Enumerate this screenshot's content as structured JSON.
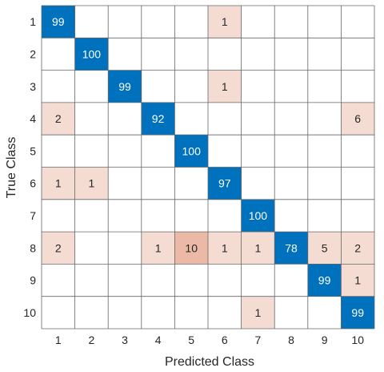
{
  "chart_data": {
    "type": "heatmap",
    "title": "",
    "xlabel": "Predicted Class",
    "ylabel": "True Class",
    "x_categories": [
      "1",
      "2",
      "3",
      "4",
      "5",
      "6",
      "7",
      "8",
      "9",
      "10"
    ],
    "y_categories": [
      "1",
      "2",
      "3",
      "4",
      "5",
      "6",
      "7",
      "8",
      "9",
      "10"
    ],
    "values": [
      [
        99,
        0,
        0,
        0,
        0,
        1,
        0,
        0,
        0,
        0
      ],
      [
        0,
        100,
        0,
        0,
        0,
        0,
        0,
        0,
        0,
        0
      ],
      [
        0,
        0,
        99,
        0,
        0,
        1,
        0,
        0,
        0,
        0
      ],
      [
        2,
        0,
        0,
        92,
        0,
        0,
        0,
        0,
        0,
        6
      ],
      [
        0,
        0,
        0,
        0,
        100,
        0,
        0,
        0,
        0,
        0
      ],
      [
        1,
        1,
        0,
        0,
        0,
        97,
        0,
        0,
        0,
        0
      ],
      [
        0,
        0,
        0,
        0,
        0,
        0,
        100,
        0,
        0,
        0
      ],
      [
        2,
        0,
        0,
        1,
        10,
        1,
        1,
        78,
        5,
        2
      ],
      [
        0,
        0,
        0,
        0,
        0,
        0,
        0,
        0,
        99,
        1
      ],
      [
        0,
        0,
        0,
        0,
        0,
        0,
        1,
        0,
        0,
        99
      ]
    ],
    "grid": true,
    "colors": {
      "diagonal": "#0072BD",
      "off_diagonal_low": "#F4DCD3",
      "off_diagonal_high": "#EBB9A5",
      "grid": "#666666",
      "text_light": "#ffffff",
      "text_dark": "#262626"
    }
  }
}
